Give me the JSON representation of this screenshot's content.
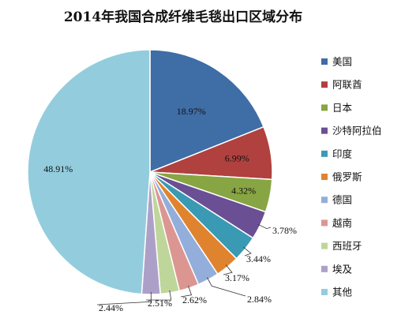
{
  "chart_data": {
    "type": "pie",
    "title": "2014年我国合成纤维毛毯出口区域分布",
    "legend_position": "right",
    "slices": [
      {
        "name": "美国",
        "value": 18.97,
        "label": "18.97%",
        "color": "#3F6DA6"
      },
      {
        "name": "阿联酋",
        "value": 6.99,
        "label": "6.99%",
        "color": "#B0413E"
      },
      {
        "name": "日本",
        "value": 4.32,
        "label": "4.32%",
        "color": "#87A542"
      },
      {
        "name": "沙特阿拉伯",
        "value": 3.78,
        "label": "3.78%",
        "color": "#6A4F94"
      },
      {
        "name": "印度",
        "value": 3.44,
        "label": "3.44%",
        "color": "#3A9AB3"
      },
      {
        "name": "俄罗斯",
        "value": 3.17,
        "label": "3.17%",
        "color": "#E0832F"
      },
      {
        "name": "德国",
        "value": 2.84,
        "label": "2.84%",
        "color": "#93AEDB"
      },
      {
        "name": "越南",
        "value": 2.62,
        "label": "2.62%",
        "color": "#DC9692"
      },
      {
        "name": "西班牙",
        "value": 2.51,
        "label": "2.51%",
        "color": "#BFD69B"
      },
      {
        "name": "埃及",
        "value": 2.44,
        "label": "2.44%",
        "color": "#ADA0C8"
      },
      {
        "name": "其他",
        "value": 48.91,
        "label": "48.91%",
        "color": "#93CDDD"
      }
    ]
  }
}
